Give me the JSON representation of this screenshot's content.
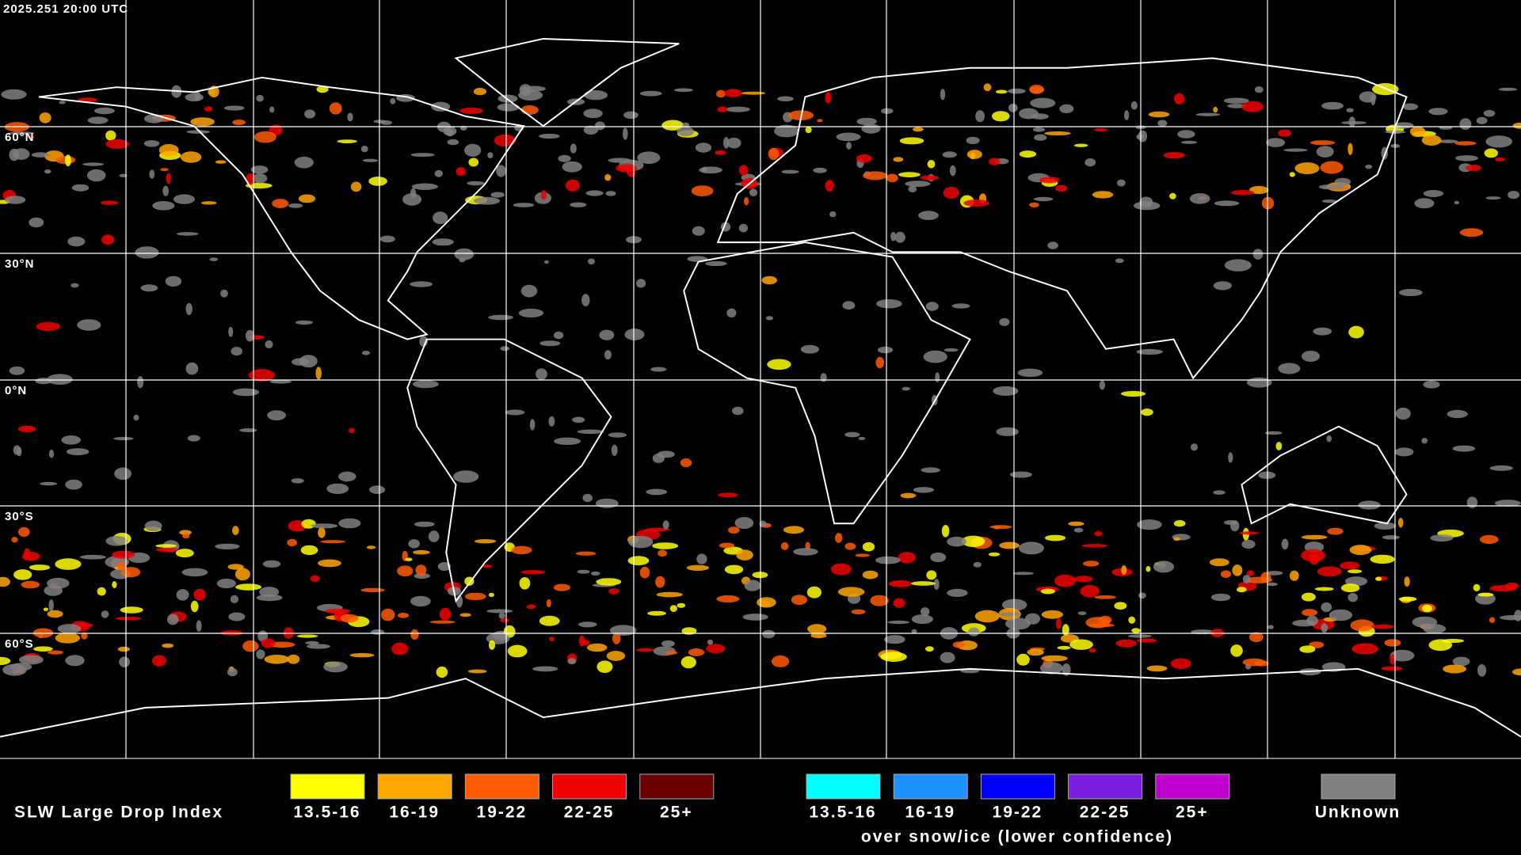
{
  "header": {
    "timestamp": "2025.251 20:00 UTC"
  },
  "map": {
    "latitude_labels": [
      "60°N",
      "30°N",
      "0°N",
      "30°S",
      "60°S"
    ]
  },
  "legend": {
    "title": "SLW Large Drop Index",
    "groups": [
      {
        "items": [
          {
            "label": "13.5-16",
            "color": "#ffff00"
          },
          {
            "label": "16-19",
            "color": "#ffa500"
          },
          {
            "label": "19-22",
            "color": "#ff5a00"
          },
          {
            "label": "22-25",
            "color": "#ee0000"
          },
          {
            "label": "25+",
            "color": "#6a0000"
          }
        ]
      },
      {
        "items": [
          {
            "label": "13.5-16",
            "color": "#00ffff"
          },
          {
            "label": "16-19",
            "color": "#1e90ff"
          },
          {
            "label": "19-22",
            "color": "#0000ff"
          },
          {
            "label": "22-25",
            "color": "#7a1fe0"
          },
          {
            "label": "25+",
            "color": "#c000d0"
          }
        ],
        "caption": "over snow/ice (lower confidence)"
      }
    ],
    "unknown": {
      "label": "Unknown",
      "color": "#808080"
    }
  }
}
